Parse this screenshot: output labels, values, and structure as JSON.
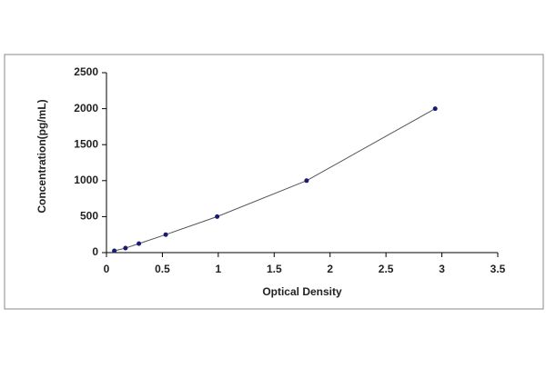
{
  "chart_data": {
    "type": "scatter",
    "x_label": "Optical Density",
    "y_label": "Concentration(pg/mL)",
    "x": [
      0.07,
      0.17,
      0.29,
      0.53,
      0.99,
      1.79,
      2.94
    ],
    "series": [
      {
        "color": "#1a1a6e",
        "values": [
          25,
          62.5,
          125,
          250,
          500,
          1000,
          2000
        ]
      }
    ],
    "line": true,
    "xlim": [
      0,
      3.5
    ],
    "xticks": [
      0,
      0.5,
      1,
      1.5,
      2,
      2.5,
      3,
      3.5
    ],
    "ylim": [
      0,
      2500
    ],
    "yticks": [
      0,
      500,
      1000,
      1500,
      2000,
      2500
    ],
    "grid": false
  }
}
